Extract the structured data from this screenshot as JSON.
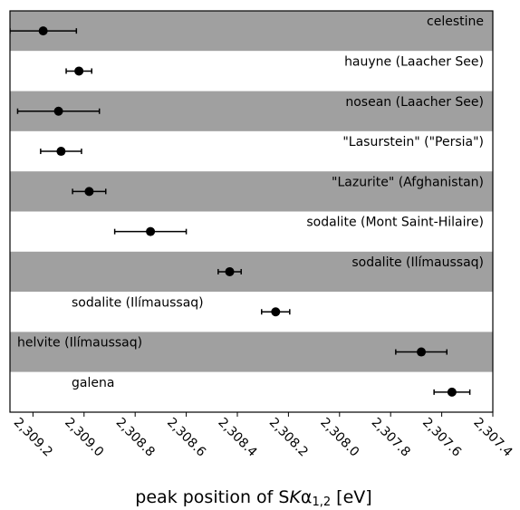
{
  "chart_data": {
    "type": "errorbar",
    "categories": [
      "celestine",
      "hauyne (Laacher See)",
      "nosean (Laacher See)",
      "\"Lasurstein\" (\"Persia\")",
      "\"Lazurite\" (Afghanistan)",
      "sodalite (Mont Saint-Hilaire)",
      "sodalite (Ilímaussaq)",
      "sodalite (Ilímaussaq)",
      "helvite (Ilímaussaq)",
      "galena"
    ],
    "values": [
      2309.16,
      2309.02,
      2309.1,
      2309.09,
      2308.98,
      2308.74,
      2308.43,
      2308.25,
      2307.68,
      2307.56
    ],
    "errors": [
      0.13,
      0.05,
      0.16,
      0.08,
      0.065,
      0.14,
      0.045,
      0.055,
      0.1,
      0.07
    ],
    "color": "#000000",
    "band_colors": [
      "#a0a0a0",
      "#ffffff"
    ],
    "xlabel": [
      "peak position of S",
      "K",
      "α",
      "1,2",
      " [eV]"
    ],
    "xlim": [
      2309.29,
      2307.4
    ],
    "xticks": [
      {
        "value": 2309.2,
        "label": "2,309.2"
      },
      {
        "value": 2309.0,
        "label": "2,309.0"
      },
      {
        "value": 2308.8,
        "label": "2,308.8"
      },
      {
        "value": 2308.6,
        "label": "2,308.6"
      },
      {
        "value": 2308.4,
        "label": "2,308.4"
      },
      {
        "value": 2308.2,
        "label": "2,308.2"
      },
      {
        "value": 2308.0,
        "label": "2,308.0"
      },
      {
        "value": 2307.8,
        "label": "2,307.8"
      },
      {
        "value": 2307.6,
        "label": "2,307.6"
      },
      {
        "value": 2307.4,
        "label": "2,307.4"
      }
    ]
  }
}
